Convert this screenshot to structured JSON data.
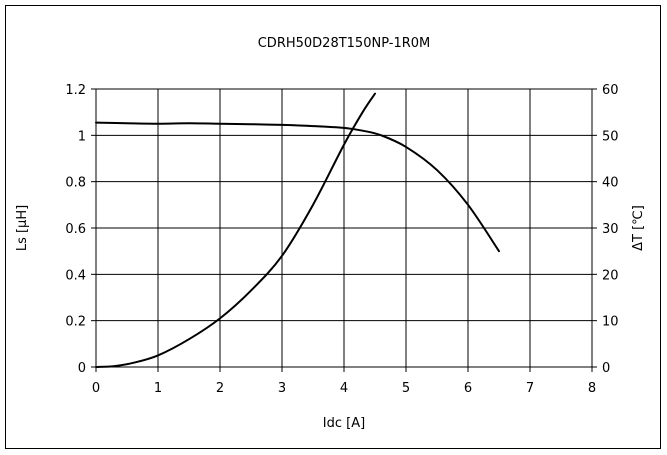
{
  "chart_data": {
    "type": "line",
    "title": "CDRH50D28T150NP-1R0M",
    "xlabel": "Idc [A]",
    "ylabel_left": "Ls [μH]",
    "ylabel_right": "ΔT [℃]",
    "xlim": [
      0,
      8
    ],
    "ylim_left": [
      0,
      1.2
    ],
    "ylim_right": [
      0,
      60
    ],
    "x_ticks": [
      "0",
      "1",
      "2",
      "3",
      "4",
      "5",
      "6",
      "7",
      "8"
    ],
    "y_left_ticks": [
      "0",
      "0.2",
      "0.4",
      "0.6",
      "0.8",
      "1",
      "1.2"
    ],
    "y_right_ticks": [
      "0",
      "10",
      "20",
      "30",
      "40",
      "50",
      "60"
    ],
    "grid": true,
    "series": [
      {
        "axis": "left",
        "color": "#000000",
        "x": [
          0,
          0.5,
          1,
          1.5,
          2,
          2.5,
          3,
          3.5,
          4,
          4.3,
          4.6,
          5,
          5.5,
          6,
          6.5
        ],
        "y": [
          1.055,
          1.052,
          1.05,
          1.052,
          1.05,
          1.048,
          1.045,
          1.04,
          1.032,
          1.02,
          1.0,
          0.95,
          0.85,
          0.7,
          0.5
        ]
      },
      {
        "axis": "right",
        "color": "#000000",
        "x": [
          0,
          0.3,
          0.6,
          1,
          1.5,
          2,
          2.5,
          3,
          3.5,
          4,
          4.3,
          4.5
        ],
        "y": [
          0,
          0.2,
          0.9,
          2.5,
          6,
          10.5,
          16.5,
          24,
          35,
          48,
          55,
          59
        ]
      }
    ]
  }
}
